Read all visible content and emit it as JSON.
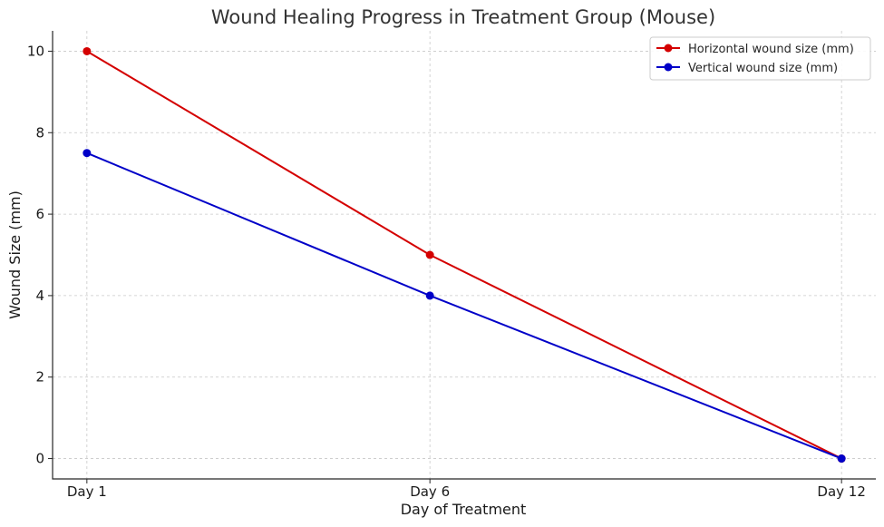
{
  "chart_data": {
    "type": "line",
    "title": "Wound Healing Progress in Treatment Group (Mouse)",
    "xlabel": "Day of Treatment",
    "ylabel": "Wound Size (mm)",
    "categories": [
      "Day 1",
      "Day 6",
      "Day 12"
    ],
    "x": [
      1,
      6,
      12
    ],
    "xlim": [
      0.5,
      12.5
    ],
    "ylim": [
      -0.5,
      10.5
    ],
    "yticks": [
      0,
      2,
      4,
      6,
      8,
      10
    ],
    "grid": true,
    "legend_position": "top-right",
    "series": [
      {
        "name": "Horizontal wound size (mm)",
        "values": [
          10,
          5,
          0
        ],
        "color": "#d40000"
      },
      {
        "name": "Vertical wound size (mm)",
        "values": [
          7.5,
          4,
          0
        ],
        "color": "#0000c8"
      }
    ]
  }
}
